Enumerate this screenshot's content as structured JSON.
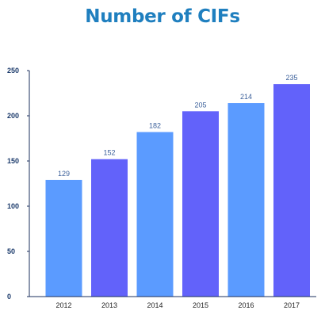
{
  "colors": {
    "title": "#1f7fbf",
    "axis": "#1b2f5e",
    "y_tick_text": "#1b3a6b",
    "data_label_text": "#3a5f9a",
    "bar_light": "#5b9bff",
    "bar_dark": "#6262fa"
  },
  "chart_data": {
    "type": "bar",
    "title": "Number of CIFs",
    "xlabel": "",
    "ylabel": "",
    "categories": [
      "2012",
      "2013",
      "2014",
      "2015",
      "2016",
      "2017"
    ],
    "values": [
      129,
      152,
      182,
      205,
      214,
      235
    ],
    "bar_colors": [
      "#5b9bff",
      "#6262fa",
      "#5b9bff",
      "#6262fa",
      "#5b9bff",
      "#6262fa"
    ],
    "ylim": [
      0,
      250
    ],
    "yticks": [
      0,
      50,
      100,
      150,
      200,
      250
    ],
    "grid": false,
    "legend": "none",
    "data_labels": true
  }
}
